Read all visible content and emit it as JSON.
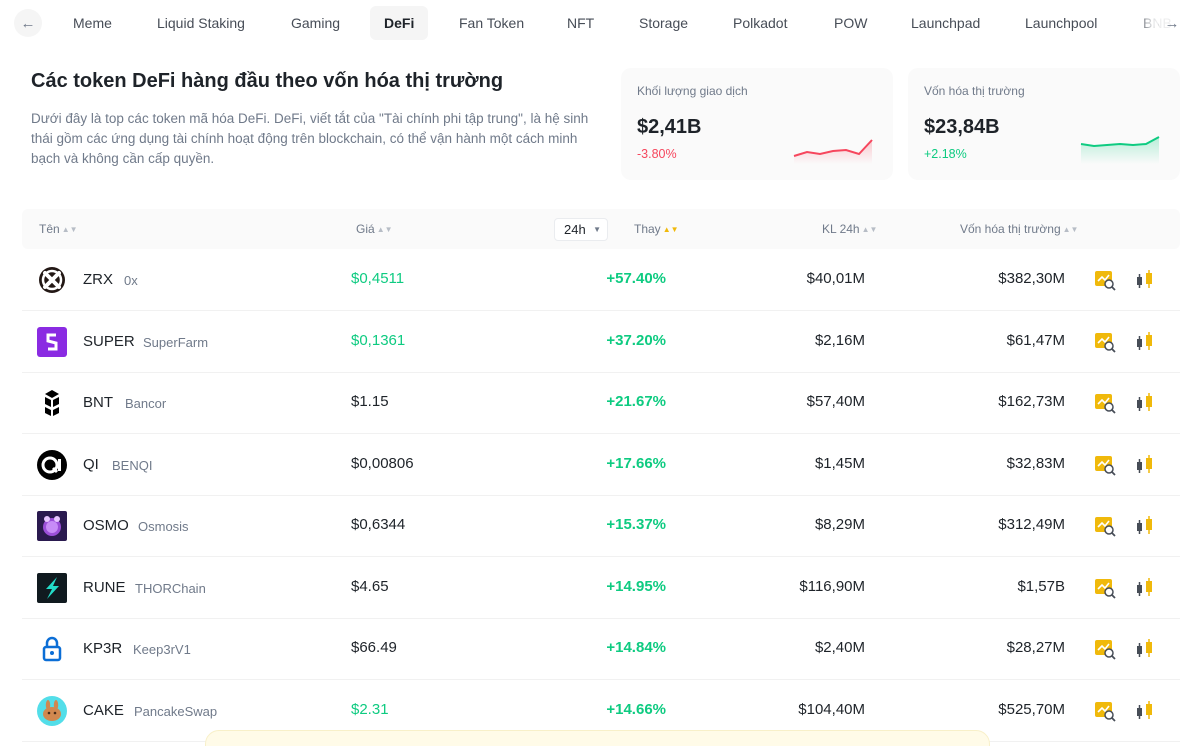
{
  "tabs": [
    {
      "label": "Meme",
      "active": false
    },
    {
      "label": "Liquid Staking",
      "active": false
    },
    {
      "label": "Gaming",
      "active": false
    },
    {
      "label": "DeFi",
      "active": true
    },
    {
      "label": "Fan Token",
      "active": false
    },
    {
      "label": "NFT",
      "active": false
    },
    {
      "label": "Storage",
      "active": false
    },
    {
      "label": "Polkadot",
      "active": false
    },
    {
      "label": "POW",
      "active": false
    },
    {
      "label": "Launchpad",
      "active": false
    },
    {
      "label": "Launchpool",
      "active": false
    },
    {
      "label": "BNB",
      "active": false
    }
  ],
  "header": {
    "title": "Các token DeFi hàng đầu theo vốn hóa thị trường",
    "description": "Dưới đây là top các token mã hóa DeFi. DeFi, viết tắt của \"Tài chính phi tập trung\", là hệ sinh thái gồm các ứng dụng tài chính hoạt động trên blockchain, có thể vận hành một cách minh bạch và không cần cấp quyền."
  },
  "stats": {
    "volume": {
      "label": "Khối lượng giao dịch",
      "value": "$2,41B",
      "change": "-3.80%",
      "sparkline": [
        42,
        38,
        40,
        37,
        36,
        40,
        26
      ]
    },
    "market_cap": {
      "label": "Vốn hóa thị trường",
      "value": "$23,84B",
      "change": "+2.18%",
      "sparkline": [
        30,
        32,
        31,
        30,
        31,
        30,
        23
      ]
    }
  },
  "table": {
    "columns": {
      "name": "Tên",
      "price": "Giá",
      "period": "24h",
      "change": "Thay",
      "volume": "KL 24h",
      "market_cap": "Vốn hóa thị trường"
    },
    "rows": [
      {
        "symbol": "ZRX",
        "name": "0x",
        "price": "$0,4511",
        "price_up": true,
        "change": "+57.40%",
        "volume": "$40,01M",
        "market_cap": "$382,30M",
        "logo": "zrx-logo"
      },
      {
        "symbol": "SUPER",
        "name": "SuperFarm",
        "price": "$0,1361",
        "price_up": true,
        "change": "+37.20%",
        "volume": "$2,16M",
        "market_cap": "$61,47M",
        "logo": "superfarm-logo"
      },
      {
        "symbol": "BNT",
        "name": "Bancor",
        "price": "$1.15",
        "price_up": false,
        "change": "+21.67%",
        "volume": "$57,40M",
        "market_cap": "$162,73M",
        "logo": "bancor-logo"
      },
      {
        "symbol": "QI",
        "name": "BENQI",
        "price": "$0,00806",
        "price_up": false,
        "change": "+17.66%",
        "volume": "$1,45M",
        "market_cap": "$32,83M",
        "logo": "benqi-logo"
      },
      {
        "symbol": "OSMO",
        "name": "Osmosis",
        "price": "$0,6344",
        "price_up": false,
        "change": "+15.37%",
        "volume": "$8,29M",
        "market_cap": "$312,49M",
        "logo": "osmosis-logo"
      },
      {
        "symbol": "RUNE",
        "name": "THORChain",
        "price": "$4.65",
        "price_up": false,
        "change": "+14.95%",
        "volume": "$116,90M",
        "market_cap": "$1,57B",
        "logo": "thorchain-logo"
      },
      {
        "symbol": "KP3R",
        "name": "Keep3rV1",
        "price": "$66.49",
        "price_up": false,
        "change": "+14.84%",
        "volume": "$2,40M",
        "market_cap": "$28,27M",
        "logo": "keep3r-logo"
      },
      {
        "symbol": "CAKE",
        "name": "PancakeSwap",
        "price": "$2.31",
        "price_up": true,
        "change": "+14.66%",
        "volume": "$104,40M",
        "market_cap": "$525,70M",
        "logo": "pancakeswap-logo"
      }
    ]
  },
  "icons": {
    "prev": "arrow-left-icon",
    "next": "arrow-right-icon",
    "detail": "chart-magnifier-icon",
    "trade": "candlestick-icon"
  },
  "colors": {
    "positive": "#0ecb81",
    "negative": "#f6465d",
    "accent": "#f0b90b"
  }
}
